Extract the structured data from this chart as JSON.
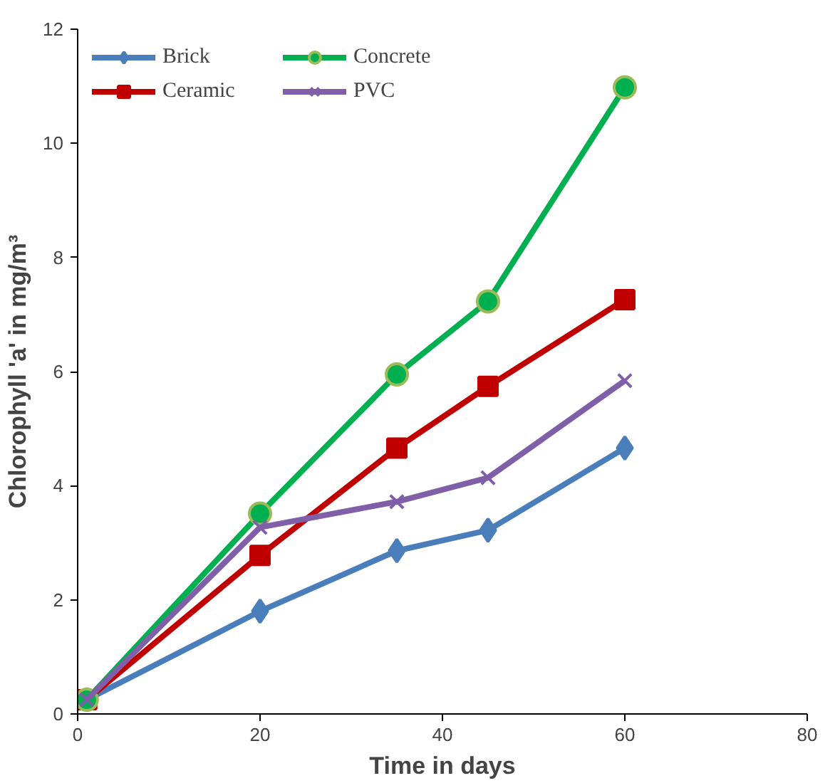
{
  "chart_data": {
    "type": "line",
    "xlabel": "Time in days",
    "ylabel": "Chlorophyll 'a' in mg/m³",
    "x": [
      1,
      20,
      35,
      45,
      60
    ],
    "xlim": [
      0,
      80
    ],
    "xticks": [
      0,
      20,
      40,
      60,
      80
    ],
    "ylim": [
      0,
      12
    ],
    "yticks": [
      0,
      2,
      4,
      6,
      8,
      10,
      12
    ],
    "grid": false,
    "legend": "top left",
    "series": [
      {
        "name": "Brick",
        "color": "#4a7ebb",
        "marker": "diamond",
        "values": [
          0.25,
          1.8,
          2.86,
          3.22,
          4.66
        ]
      },
      {
        "name": "Ceramic",
        "color": "#c00000",
        "marker": "square",
        "values": [
          0.25,
          2.78,
          4.66,
          5.74,
          7.26
        ]
      },
      {
        "name": "Concrete",
        "color": "#00b050",
        "marker": "circle",
        "values": [
          0.25,
          3.51,
          5.95,
          7.23,
          10.98
        ]
      },
      {
        "name": "PVC",
        "color": "#7f5fa8",
        "marker": "cross",
        "values": [
          0.25,
          3.27,
          3.72,
          4.14,
          5.84
        ]
      }
    ]
  }
}
